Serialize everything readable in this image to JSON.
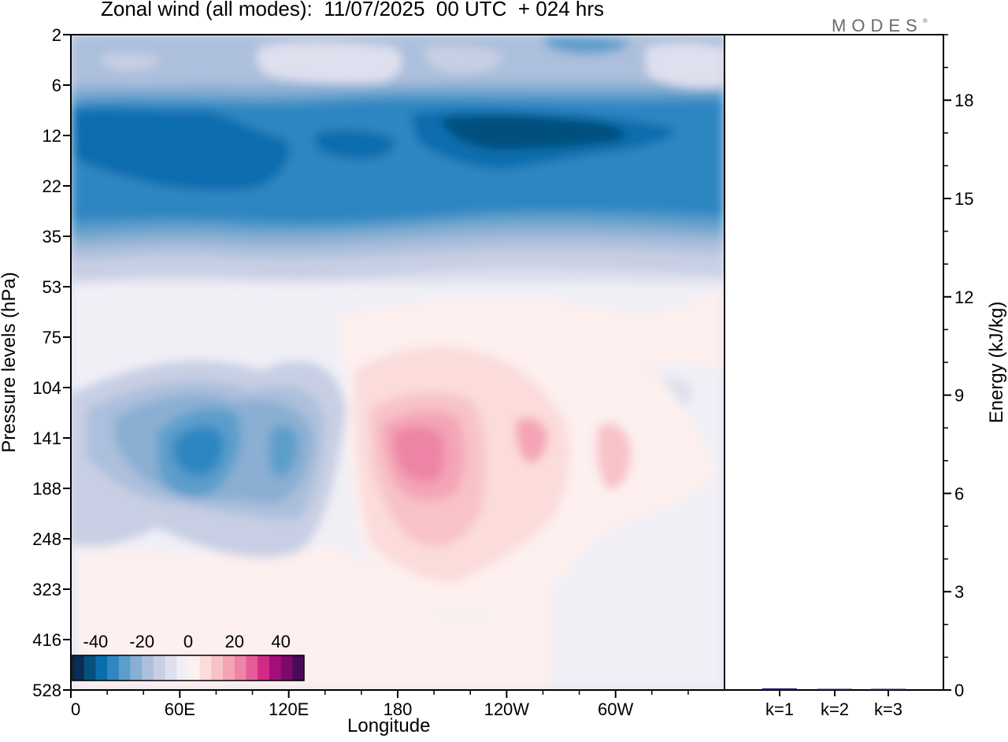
{
  "title": "Zonal wind (all modes):  11/07/2025  00 UTC  + 024 hrs",
  "brand": "MODES",
  "brand_mark": "®",
  "colors": {
    "neg": [
      "#0b2d53",
      "#06507c",
      "#0a6dae",
      "#2f86c1",
      "#5c9ecb",
      "#8aafd2",
      "#acbfdc",
      "#c8cfe4",
      "#dfe0ee",
      "#f0eff6"
    ],
    "pos": [
      "#fdf0ef",
      "#fbdcdb",
      "#f7c3c8",
      "#f4a4b5",
      "#ee84a6",
      "#e75b98",
      "#cf2b87",
      "#a50e78",
      "#7c0a6b",
      "#4b0a57"
    ]
  },
  "chart_data": [
    {
      "type": "heatmap",
      "title": "Zonal wind (all modes):  11/07/2025  00 UTC  + 024 hrs",
      "xlabel": "Longitude",
      "ylabel": "Pressure levels (hPa)",
      "x_ticks": [
        {
          "lon": 0,
          "label": "0"
        },
        {
          "lon": 60,
          "label": "60E"
        },
        {
          "lon": 120,
          "label": "120E"
        },
        {
          "lon": 180,
          "label": "180"
        },
        {
          "lon": 240,
          "label": "120W"
        },
        {
          "lon": 300,
          "label": "60W"
        }
      ],
      "xlim": [
        0,
        360
      ],
      "y_levels": [
        "2",
        "6",
        "12",
        "22",
        "35",
        "53",
        "75",
        "104",
        "141",
        "188",
        "248",
        "323",
        "416",
        "528"
      ],
      "colorbar": {
        "ticks": [
          "-40",
          "-20",
          "0",
          "20",
          "40"
        ],
        "range": [
          -50,
          50
        ],
        "step": 5
      },
      "features": [
        {
          "name": "stratospheric easterly band",
          "lon": [
            0,
            360
          ],
          "level": [
            "6",
            "35"
          ],
          "value": -35
        },
        {
          "name": "upper easterly core",
          "lon": [
            190,
            300
          ],
          "level": [
            "12",
            "12"
          ],
          "value": -40
        },
        {
          "name": "easterly core near 60E",
          "lon": [
            55,
            75
          ],
          "level": [
            "141",
            "141"
          ],
          "value": -30
        },
        {
          "name": "westerly core near 180",
          "lon": [
            175,
            205
          ],
          "level": [
            "141",
            "188"
          ],
          "value": 20
        }
      ]
    },
    {
      "type": "bar",
      "ylabel": "Energy (kJ/kg)",
      "categories": [
        "k=1",
        "k=2",
        "k=3"
      ],
      "values": [
        0.05,
        0.03,
        0.02
      ],
      "ylim": [
        0,
        20
      ],
      "y_ticks": [
        "0",
        "3",
        "6",
        "9",
        "12",
        "15",
        "18"
      ],
      "bar_color": "#1a1a7a"
    }
  ]
}
